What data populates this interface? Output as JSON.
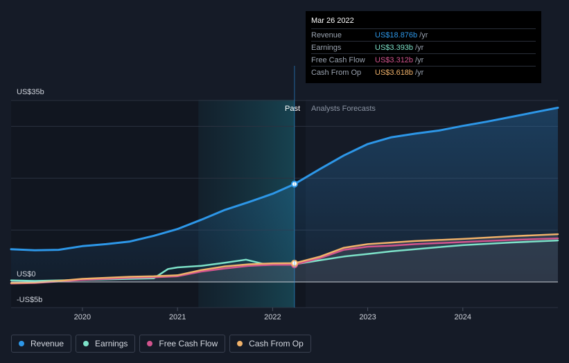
{
  "tooltip": {
    "date": "Mar 26 2022",
    "rows": [
      {
        "label": "Revenue",
        "value": "US$18.876b",
        "unit": "/yr",
        "color": "#2d97e8"
      },
      {
        "label": "Earnings",
        "value": "US$3.393b",
        "unit": "/yr",
        "color": "#7de2c9"
      },
      {
        "label": "Free Cash Flow",
        "value": "US$3.312b",
        "unit": "/yr",
        "color": "#d2548e"
      },
      {
        "label": "Cash From Op",
        "value": "US$3.618b",
        "unit": "/yr",
        "color": "#f1b26a"
      }
    ]
  },
  "sections": {
    "past": "Past",
    "forecast": "Analysts Forecasts"
  },
  "legend": [
    {
      "label": "Revenue",
      "color": "#2d97e8"
    },
    {
      "label": "Earnings",
      "color": "#7de2c9"
    },
    {
      "label": "Free Cash Flow",
      "color": "#d2548e"
    },
    {
      "label": "Cash From Op",
      "color": "#f1b26a"
    }
  ],
  "chart_data": {
    "type": "line",
    "ylim": [
      -5,
      35
    ],
    "xlim": [
      2019.25,
      2025.0
    ],
    "y_tick_labels": [
      {
        "value": 35,
        "label": "US$35b"
      },
      {
        "value": 0,
        "label": "US$0"
      },
      {
        "value": -5,
        "label": "-US$5b"
      }
    ],
    "x_ticks": [
      {
        "value": 2020,
        "label": "2020"
      },
      {
        "value": 2021,
        "label": "2021"
      },
      {
        "value": 2022,
        "label": "2022"
      },
      {
        "value": 2023,
        "label": "2023"
      },
      {
        "value": 2024,
        "label": "2024"
      }
    ],
    "highlight_range": [
      2021.22,
      2022.23
    ],
    "divider_x": 2022.23,
    "series": [
      {
        "name": "Revenue",
        "color": "#2d97e8",
        "points": [
          [
            2019.25,
            6.3
          ],
          [
            2019.5,
            6.1
          ],
          [
            2019.75,
            6.2
          ],
          [
            2020.0,
            6.9
          ],
          [
            2020.25,
            7.3
          ],
          [
            2020.5,
            7.8
          ],
          [
            2020.75,
            8.9
          ],
          [
            2021.0,
            10.2
          ],
          [
            2021.25,
            12.0
          ],
          [
            2021.5,
            13.9
          ],
          [
            2021.75,
            15.4
          ],
          [
            2022.0,
            17.0
          ],
          [
            2022.23,
            18.876
          ],
          [
            2022.5,
            21.8
          ],
          [
            2022.75,
            24.4
          ],
          [
            2023.0,
            26.6
          ],
          [
            2023.25,
            27.9
          ],
          [
            2023.5,
            28.6
          ],
          [
            2023.75,
            29.2
          ],
          [
            2024.0,
            30.1
          ],
          [
            2024.25,
            30.9
          ],
          [
            2024.5,
            31.8
          ],
          [
            2024.75,
            32.7
          ],
          [
            2025.0,
            33.6
          ]
        ]
      },
      {
        "name": "Earnings",
        "color": "#7de2c9",
        "points": [
          [
            2019.25,
            0.3
          ],
          [
            2019.5,
            0.2
          ],
          [
            2019.75,
            0.3
          ],
          [
            2020.0,
            0.4
          ],
          [
            2020.25,
            0.5
          ],
          [
            2020.5,
            0.6
          ],
          [
            2020.75,
            0.7
          ],
          [
            2020.9,
            2.5
          ],
          [
            2021.0,
            2.8
          ],
          [
            2021.25,
            3.1
          ],
          [
            2021.5,
            3.7
          ],
          [
            2021.72,
            4.3
          ],
          [
            2021.9,
            3.5
          ],
          [
            2022.0,
            3.5
          ],
          [
            2022.23,
            3.393
          ],
          [
            2022.5,
            4.2
          ],
          [
            2022.75,
            4.9
          ],
          [
            2023.0,
            5.4
          ],
          [
            2023.25,
            5.9
          ],
          [
            2023.5,
            6.3
          ],
          [
            2023.75,
            6.7
          ],
          [
            2024.0,
            7.1
          ],
          [
            2024.5,
            7.6
          ],
          [
            2025.0,
            8.0
          ]
        ]
      },
      {
        "name": "Free Cash Flow",
        "color": "#d2548e",
        "points": [
          [
            2019.25,
            -0.3
          ],
          [
            2019.5,
            -0.2
          ],
          [
            2019.75,
            0.1
          ],
          [
            2020.0,
            0.4
          ],
          [
            2020.25,
            0.6
          ],
          [
            2020.5,
            0.8
          ],
          [
            2020.75,
            0.9
          ],
          [
            2021.0,
            1.1
          ],
          [
            2021.25,
            2.0
          ],
          [
            2021.5,
            2.6
          ],
          [
            2021.75,
            3.1
          ],
          [
            2022.0,
            3.3
          ],
          [
            2022.23,
            3.312
          ],
          [
            2022.5,
            4.6
          ],
          [
            2022.75,
            6.2
          ],
          [
            2023.0,
            6.8
          ],
          [
            2023.25,
            7.0
          ],
          [
            2023.5,
            7.3
          ],
          [
            2023.75,
            7.5
          ],
          [
            2024.0,
            7.7
          ],
          [
            2024.5,
            8.1
          ],
          [
            2025.0,
            8.4
          ]
        ]
      },
      {
        "name": "Cash From Op",
        "color": "#f1b26a",
        "points": [
          [
            2019.25,
            -0.2
          ],
          [
            2019.5,
            -0.1
          ],
          [
            2019.75,
            0.2
          ],
          [
            2020.0,
            0.6
          ],
          [
            2020.25,
            0.8
          ],
          [
            2020.5,
            1.0
          ],
          [
            2020.75,
            1.1
          ],
          [
            2021.0,
            1.3
          ],
          [
            2021.25,
            2.3
          ],
          [
            2021.5,
            3.0
          ],
          [
            2021.75,
            3.4
          ],
          [
            2022.0,
            3.6
          ],
          [
            2022.23,
            3.618
          ],
          [
            2022.5,
            4.9
          ],
          [
            2022.75,
            6.6
          ],
          [
            2023.0,
            7.3
          ],
          [
            2023.25,
            7.6
          ],
          [
            2023.5,
            7.9
          ],
          [
            2023.75,
            8.1
          ],
          [
            2024.0,
            8.3
          ],
          [
            2024.5,
            8.8
          ],
          [
            2025.0,
            9.2
          ]
        ]
      }
    ]
  }
}
